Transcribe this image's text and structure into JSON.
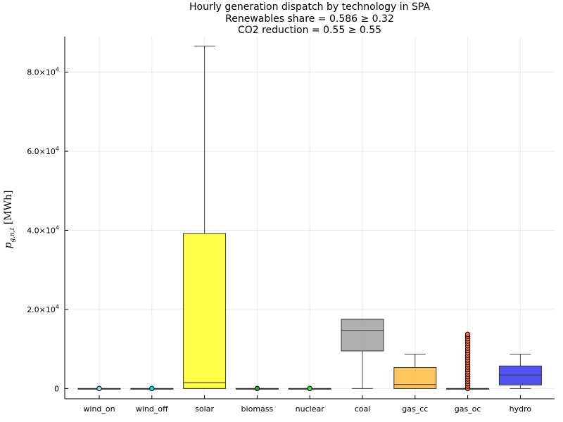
{
  "chart_data": {
    "type": "box",
    "title_lines": [
      "Hourly generation dispatch by technology in SPA",
      "Renewables share = 0.586 ≥ 0.32",
      "CO2 reduction = 0.55 ≥ 0.55"
    ],
    "ylabel": "p_{g,n,t} [MWh]",
    "ylabel_parts": {
      "symbol": "p",
      "subscript": "g,n,t",
      "unit": "[MWh]"
    },
    "ylim": [
      -2600,
      89000
    ],
    "yticks": [
      {
        "value": 0,
        "label": "0",
        "exp": ""
      },
      {
        "value": 20000,
        "label": "2.0×10",
        "exp": "4"
      },
      {
        "value": 40000,
        "label": "4.0×10",
        "exp": "4"
      },
      {
        "value": 60000,
        "label": "6.0×10",
        "exp": "4"
      },
      {
        "value": 80000,
        "label": "8.0×10",
        "exp": "4"
      }
    ],
    "grid": true,
    "categories": [
      "wind_on",
      "wind_off",
      "solar",
      "biomass",
      "nuclear",
      "coal",
      "gas_cc",
      "gas_oc",
      "hydro"
    ],
    "boxes": [
      {
        "name": "wind_on",
        "min": 0,
        "q1": 0,
        "median": 0,
        "q3": 0,
        "max": 0,
        "color": "#add8e6",
        "outliers": [
          0
        ]
      },
      {
        "name": "wind_off",
        "min": 0,
        "q1": 0,
        "median": 0,
        "q3": 0,
        "max": 0,
        "color": "#00e5ee",
        "outliers": [
          0
        ]
      },
      {
        "name": "solar",
        "min": 0,
        "q1": 0,
        "median": 1500,
        "q3": 39200,
        "max": 86600,
        "color": "#ffff33",
        "outliers": []
      },
      {
        "name": "biomass",
        "min": 0,
        "q1": 0,
        "median": 0,
        "q3": 0,
        "max": 0,
        "color": "#22aa22",
        "outliers": [
          0
        ]
      },
      {
        "name": "nuclear",
        "min": 0,
        "q1": 0,
        "median": 0,
        "q3": 0,
        "max": 0,
        "color": "#33ee33",
        "outliers": [
          0
        ]
      },
      {
        "name": "coal",
        "min": 0,
        "q1": 9500,
        "median": 14700,
        "q3": 17500,
        "max": 17500,
        "color": "#a6a6a6",
        "outliers": []
      },
      {
        "name": "gas_cc",
        "min": 0,
        "q1": 0,
        "median": 1000,
        "q3": 5300,
        "max": 8700,
        "color": "#ffbf4d",
        "outliers": []
      },
      {
        "name": "gas_oc",
        "min": 0,
        "q1": 0,
        "median": 0,
        "q3": 0,
        "max": 0,
        "color": "#ff6f3a",
        "outliers": [
          0,
          600,
          1200,
          1800,
          2400,
          3000,
          3600,
          4200,
          4800,
          5400,
          6000,
          6600,
          7200,
          7800,
          8400,
          9000,
          9600,
          10200,
          10800,
          11400,
          12000,
          12600,
          13200,
          13700
        ]
      },
      {
        "name": "hydro",
        "min": 0,
        "q1": 900,
        "median": 3400,
        "q3": 5700,
        "max": 8700,
        "color": "#3f3ff2",
        "outliers": []
      }
    ]
  }
}
